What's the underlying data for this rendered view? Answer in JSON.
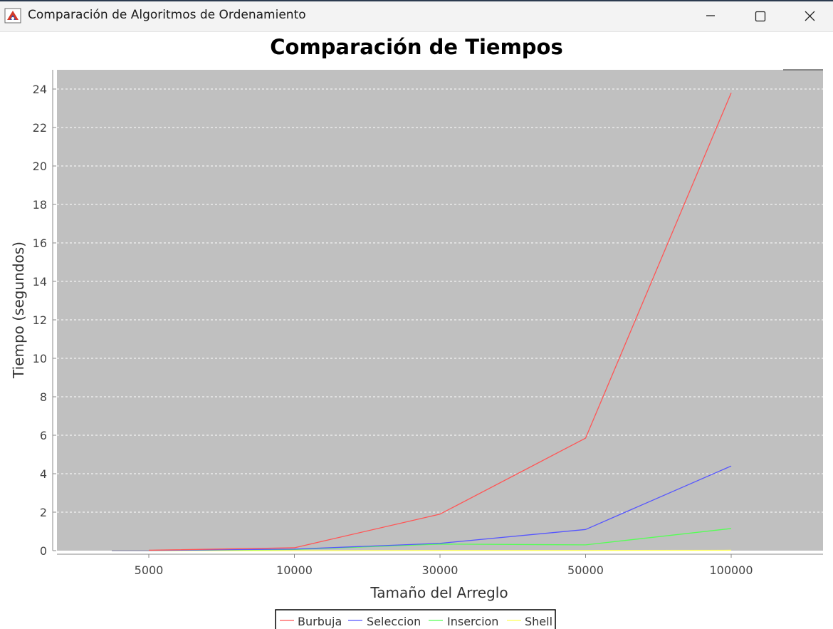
{
  "window": {
    "title": "Comparación de Algoritmos de Ordenamiento",
    "icon": "java-app-icon",
    "controls": [
      "minimize-icon",
      "maximize-icon",
      "close-icon"
    ]
  },
  "colors": {
    "plot_background": "#c0c0c0",
    "gridline": "#ffffff",
    "titlebar": "#f3f3f3"
  },
  "chart_data": {
    "type": "line",
    "title": "Comparación de Tiempos",
    "xlabel": "Tamaño del Arreglo",
    "ylabel": "Tiempo (segundos)",
    "categories": [
      "5000",
      "10000",
      "30000",
      "50000",
      "100000"
    ],
    "ylim": [
      0,
      25
    ],
    "yticks": [
      0,
      2,
      4,
      6,
      8,
      10,
      12,
      14,
      16,
      18,
      20,
      22,
      24
    ],
    "grid": true,
    "legend_position": "bottom",
    "series": [
      {
        "name": "Burbuja",
        "color": "#ff5555",
        "values": [
          0.02,
          0.15,
          1.9,
          5.85,
          23.8
        ]
      },
      {
        "name": "Seleccion",
        "color": "#5555ff",
        "values": [
          0.01,
          0.08,
          0.38,
          1.1,
          4.4
        ]
      },
      {
        "name": "Insercion",
        "color": "#55ff55",
        "values": [
          0.01,
          0.06,
          0.34,
          0.3,
          1.15
        ]
      },
      {
        "name": "Shell",
        "color": "#ffff55",
        "values": [
          0.0,
          0.0,
          0.01,
          0.01,
          0.02
        ]
      }
    ]
  }
}
